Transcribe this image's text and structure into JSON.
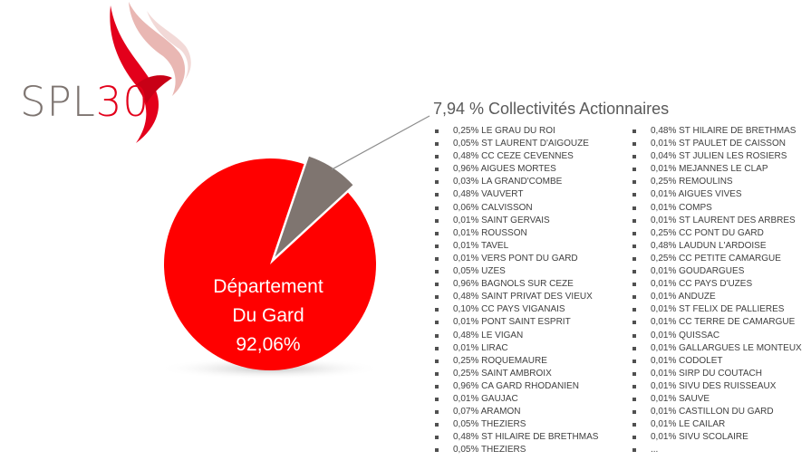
{
  "logo": {
    "text_main": "SPL",
    "text_accent": "30"
  },
  "chart_data": {
    "type": "pie",
    "slices": [
      {
        "name": "Département Du Gard",
        "value": 92.06,
        "color": "#ff0000"
      },
      {
        "name": "Collectivités Actionnaires",
        "value": 7.94,
        "color": "#7f7570"
      }
    ]
  },
  "main_label": {
    "line1": "Département",
    "line2": "Du Gard",
    "line3": "92,06%"
  },
  "callout": {
    "title": "7,94 % Collectivités Actionnaires"
  },
  "left_list": [
    "0,25% LE GRAU DU ROI",
    "0,05% ST LAURENT D'AIGOUZE",
    "0,48% CC CEZE CEVENNES",
    "0,96% AIGUES MORTES",
    "0,03% LA GRAND'COMBE",
    "0,48% VAUVERT",
    "0,06% CALVISSON",
    "0,01% SAINT GERVAIS",
    "0,01% ROUSSON",
    "0,01% TAVEL",
    "0,01% VERS PONT DU GARD",
    "0,05% UZES",
    "0,96% BAGNOLS SUR CEZE",
    "0,48% SAINT PRIVAT DES VIEUX",
    "0,10% CC PAYS VIGANAIS",
    "0,01% PONT SAINT ESPRIT",
    "0,48% LE VIGAN",
    "0,01% LIRAC",
    "0,25% ROQUEMAURE",
    "0,25% SAINT AMBROIX",
    "0,96% CA GARD RHODANIEN",
    "0,01% GAUJAC",
    "0,07% ARAMON",
    "0,05% THEZIERS",
    "0,48% ST HILAIRE DE BRETHMAS",
    "0,05% THEZIERS"
  ],
  "right_list": [
    "0,48% ST HILAIRE DE BRETHMAS",
    "0,01% ST PAULET DE CAISSON",
    "0,04% ST JULIEN LES ROSIERS",
    "0,01% MEJANNES LE CLAP",
    "0,25% REMOULINS",
    "0,01% AIGUES VIVES",
    "0,01% COMPS",
    "0,01% ST LAURENT DES ARBRES",
    "0,25% CC PONT DU GARD",
    "0,48% LAUDUN L'ARDOISE",
    "0,25% CC PETITE CAMARGUE",
    "0,01% GOUDARGUES",
    "0,01% CC PAYS D'UZES",
    "0,01% ANDUZE",
    "0,01% ST FELIX DE PALLIERES",
    "0,01% CC TERRE DE CAMARGUE",
    "0,01% QUISSAC",
    "0,01% GALLARGUES LE MONTEUX",
    "0,01% CODOLET",
    "0,01% SIRP DU COUTACH",
    "0,01% SIVU DES RUISSEAUX",
    "0,01% SAUVE",
    "0,01% CASTILLON DU GARD",
    "0,01% LE CAILAR",
    "0,01% SIVU SCOLAIRE",
    "..."
  ]
}
